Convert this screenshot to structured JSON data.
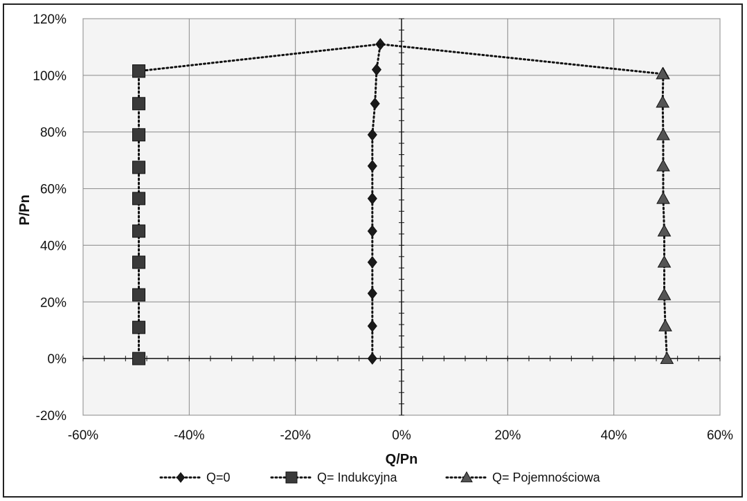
{
  "chart_data": {
    "type": "scatter",
    "xlabel": "Q/Pn",
    "ylabel": "P/Pn",
    "xlim": [
      -60,
      60
    ],
    "ylim": [
      -20,
      120
    ],
    "x_ticks": [
      "-60%",
      "-40%",
      "-20%",
      "0%",
      "20%",
      "40%",
      "60%"
    ],
    "y_ticks": [
      "-20%",
      "0%",
      "20%",
      "40%",
      "60%",
      "80%",
      "100%",
      "120%"
    ],
    "grid": true,
    "legend_position": "bottom",
    "series": [
      {
        "name": "Q=0",
        "marker": "diamond",
        "color": "#1a1a1a",
        "line": "dotted",
        "x": [
          -5.5,
          -5.5,
          -5.5,
          -5.5,
          -5.5,
          -5.5,
          -5.5,
          -5.5,
          -5,
          -4.7,
          -4
        ],
        "y": [
          0,
          11.5,
          23,
          34,
          45,
          56.5,
          68,
          79,
          90,
          102,
          111
        ]
      },
      {
        "name": "Q= Indukcyjna",
        "marker": "square",
        "color": "#3a3a3a",
        "line": "dotted",
        "x": [
          -49.5,
          -49.5,
          -49.5,
          -49.5,
          -49.5,
          -49.5,
          -49.5,
          -49.5,
          -49.5,
          -49.5,
          -49.5,
          -4
        ],
        "y": [
          0,
          11,
          22.5,
          34,
          45,
          56.5,
          67.5,
          79,
          90,
          101.5,
          101.5,
          111
        ]
      },
      {
        "name": "Q= Pojemnościowa",
        "marker": "triangle",
        "color": "#555555",
        "line": "dotted",
        "x": [
          50,
          49.7,
          49.5,
          49.5,
          49.5,
          49.3,
          49.3,
          49.3,
          49.2,
          49.3,
          49.2,
          -4
        ],
        "y": [
          0,
          11.5,
          22.5,
          34,
          45,
          56.5,
          68,
          79,
          90.5,
          100.5,
          100.5,
          111
        ]
      }
    ]
  }
}
